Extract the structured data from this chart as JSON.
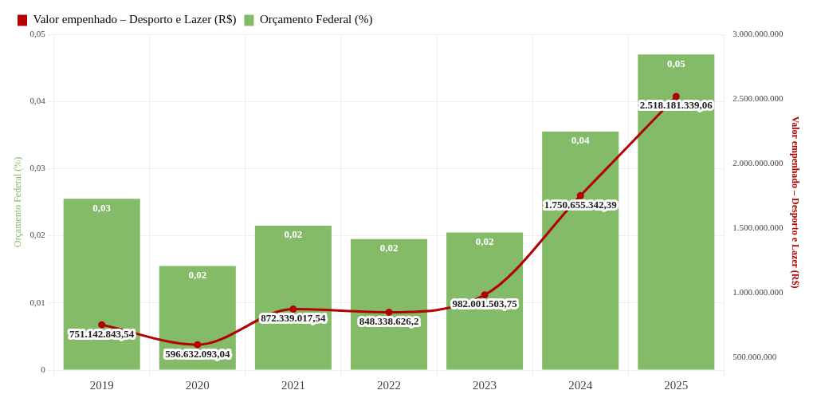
{
  "chart_data": {
    "type": "bar",
    "categories": [
      "2019",
      "2020",
      "2021",
      "2022",
      "2023",
      "2024",
      "2025"
    ],
    "ylabel": "Orçamento Federal (%)",
    "y2label": "Valor empenhado – Desporto e Lazer (R$)",
    "ylim": [
      0,
      0.05
    ],
    "yticks": [
      0,
      {
        "value": 0.01,
        "label": "0,01"
      },
      {
        "value": 0.02,
        "label": "0,02"
      },
      {
        "value": 0.03,
        "label": "0,03"
      },
      {
        "value": 0.04,
        "label": "0,04"
      },
      {
        "value": 0.05,
        "label": "0,05"
      }
    ],
    "y2lim": [
      400000000,
      3000000000
    ],
    "y2ticks": [
      {
        "value": 500000000,
        "label": "500.000.000"
      },
      {
        "value": 1000000000,
        "label": "1.000.000.000"
      },
      {
        "value": 1500000000,
        "label": "1.500.000.000"
      },
      {
        "value": 2000000000,
        "label": "2.000.000.000"
      },
      {
        "value": 2500000000,
        "label": "2.500.000.000"
      },
      {
        "value": 3000000000,
        "label": "3.000.000.000"
      }
    ],
    "grid": true,
    "legend": "top left",
    "marker": "circle",
    "series": [
      {
        "name": "Valor empenhado – Desporto e Lazer (R$)",
        "type": "line",
        "axis": "y2",
        "color": "#b30000",
        "values": [
          751142843.54,
          596632093.04,
          872339017.54,
          848338626.2,
          982001503.75,
          1750655342.39,
          2518181339.06
        ],
        "value_labels": [
          "751.142.843,54",
          "596.632.093,04",
          "872.339.017,54",
          "848.338.626,2",
          "982.001.503,75",
          "1.750.655.342,39",
          "2.518.181.339,06"
        ]
      },
      {
        "name": "Orçamento Federal (%)",
        "color": "#83bb68",
        "values": [
          0.0255,
          0.0155,
          0.0215,
          0.0195,
          0.0205,
          0.0355,
          0.047
        ],
        "value_labels": [
          "0,03",
          "0,02",
          "0,02",
          "0,02",
          "0,02",
          "0,04",
          "0,05"
        ]
      }
    ]
  }
}
